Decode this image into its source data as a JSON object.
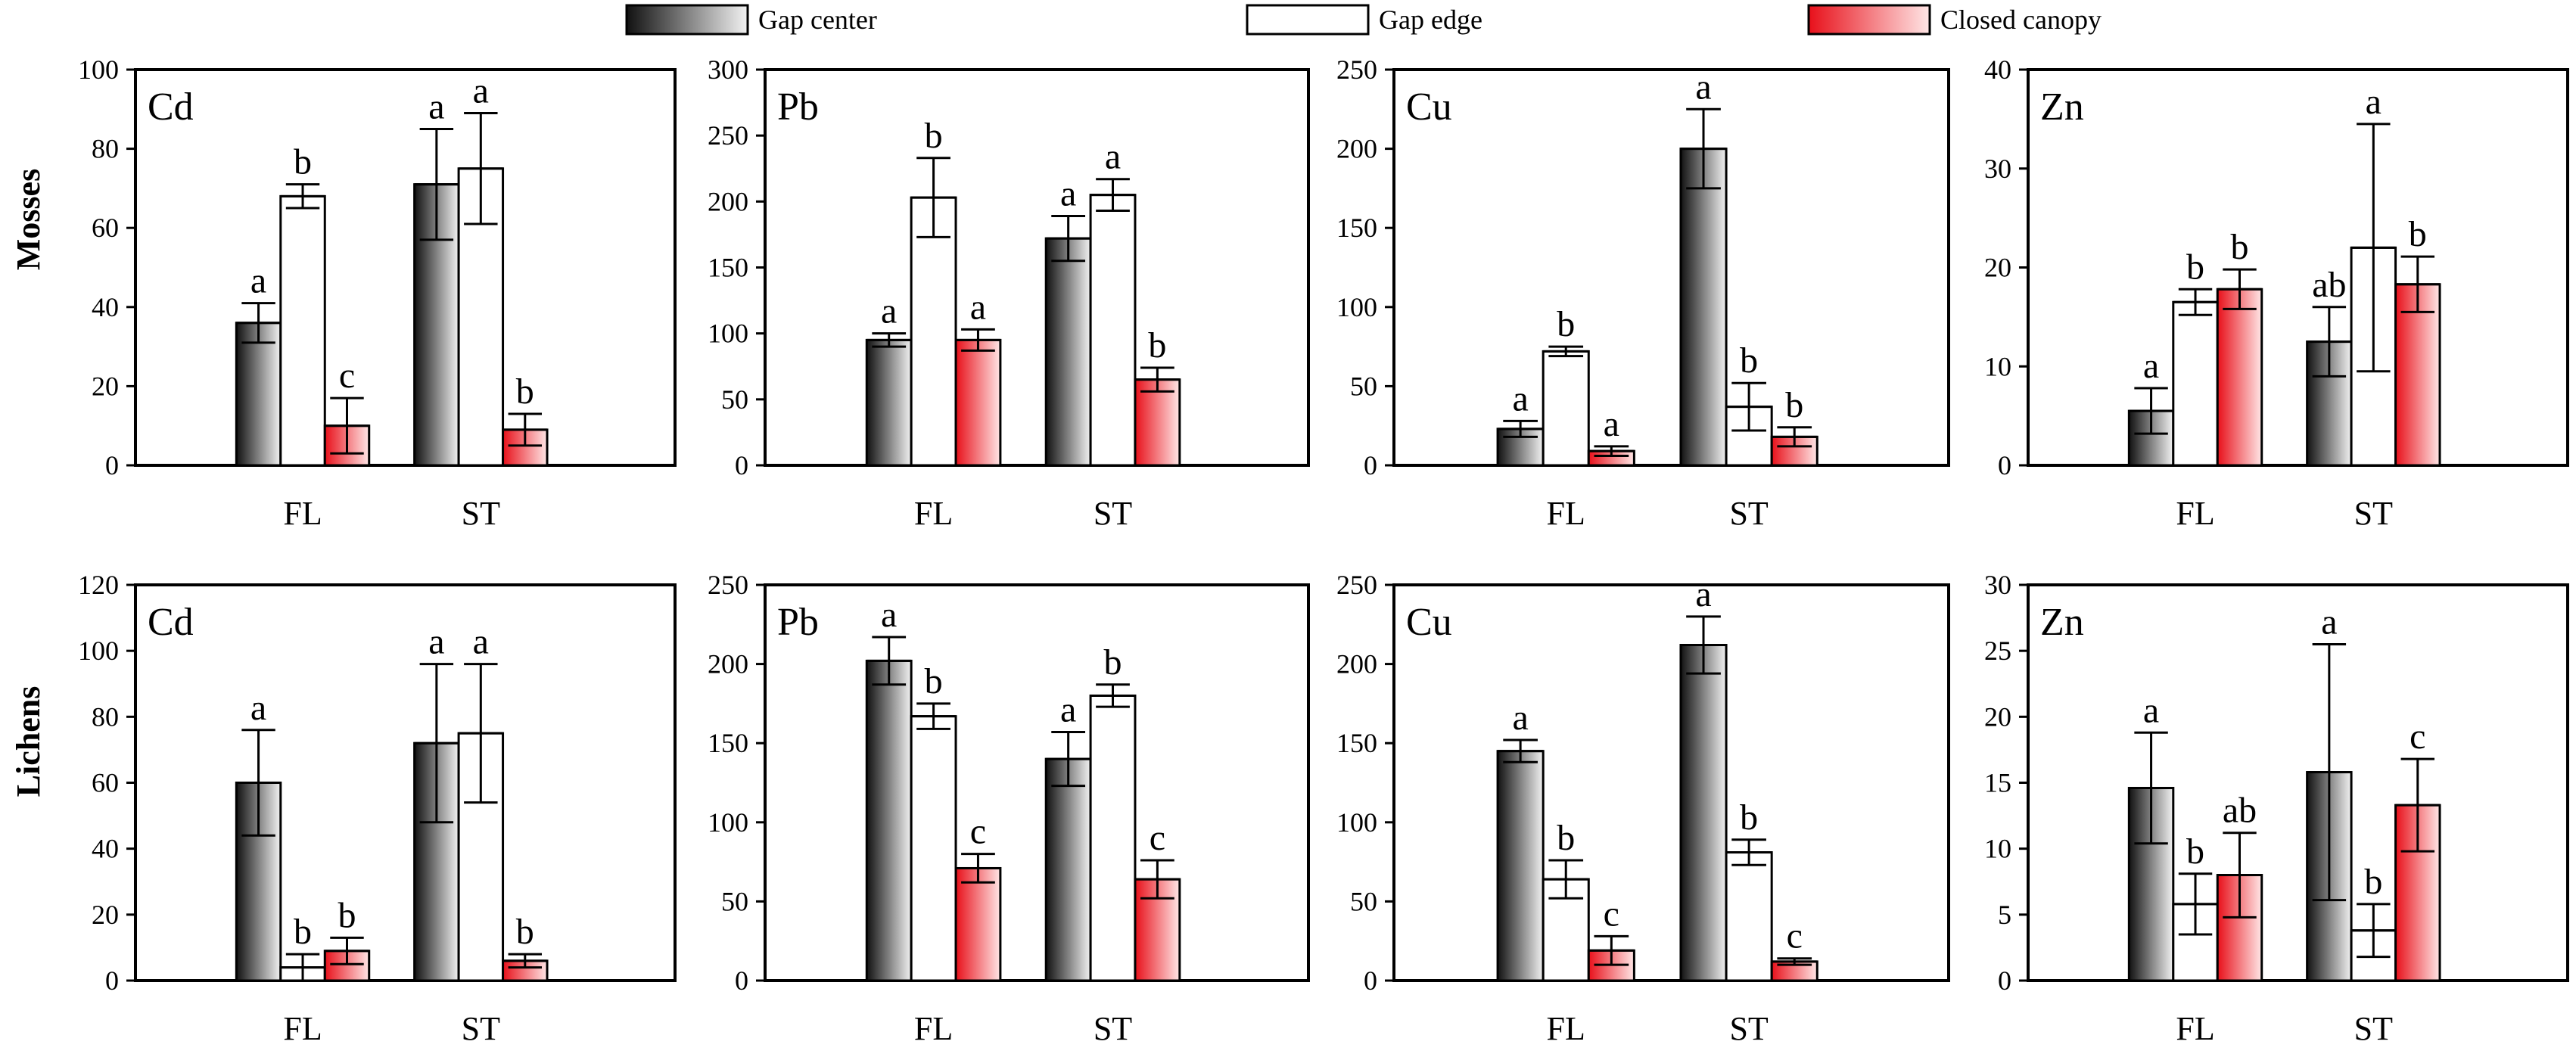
{
  "legend": {
    "items": [
      {
        "label": "Gap center",
        "key": "center"
      },
      {
        "label": "Gap edge",
        "key": "edge"
      },
      {
        "label": "Closed canopy",
        "key": "closed"
      }
    ]
  },
  "colors": {
    "center_dark": "#111111",
    "center_light": "#f2f2f2",
    "edge": "#ffffff",
    "closed_dark": "#e8101a",
    "closed_light": "#ffe6e6",
    "line": "#000000"
  },
  "rows": [
    {
      "label": "Mosses"
    },
    {
      "label": "Lichens"
    }
  ],
  "chart_data": [
    {
      "type": "bar",
      "row": "Mosses",
      "title": "Cd",
      "categories": [
        "FL",
        "ST"
      ],
      "ylim": [
        0,
        100
      ],
      "yticks": [
        0,
        20,
        40,
        60,
        80,
        100
      ],
      "series": [
        {
          "name": "Gap center",
          "values": [
            36,
            71
          ],
          "errors": [
            5,
            14
          ],
          "letters": [
            "a",
            "a"
          ]
        },
        {
          "name": "Gap edge",
          "values": [
            68,
            75
          ],
          "errors": [
            3,
            14
          ],
          "letters": [
            "b",
            "a"
          ]
        },
        {
          "name": "Closed canopy",
          "values": [
            10,
            9
          ],
          "errors": [
            7,
            4
          ],
          "letters": [
            "c",
            "b"
          ]
        }
      ]
    },
    {
      "type": "bar",
      "row": "Mosses",
      "title": "Pb",
      "categories": [
        "FL",
        "ST"
      ],
      "ylim": [
        0,
        300
      ],
      "yticks": [
        0,
        50,
        100,
        150,
        200,
        250,
        300
      ],
      "series": [
        {
          "name": "Gap center",
          "values": [
            95,
            172
          ],
          "errors": [
            5,
            17
          ],
          "letters": [
            "a",
            "a"
          ]
        },
        {
          "name": "Gap edge",
          "values": [
            203,
            205
          ],
          "errors": [
            30,
            12
          ],
          "letters": [
            "b",
            "a"
          ]
        },
        {
          "name": "Closed canopy",
          "values": [
            95,
            65
          ],
          "errors": [
            8,
            9
          ],
          "letters": [
            "a",
            "b"
          ]
        }
      ]
    },
    {
      "type": "bar",
      "row": "Mosses",
      "title": "Cu",
      "categories": [
        "FL",
        "ST"
      ],
      "ylim": [
        0,
        250
      ],
      "yticks": [
        0,
        50,
        100,
        150,
        200,
        250
      ],
      "series": [
        {
          "name": "Gap center",
          "values": [
            23,
            200
          ],
          "errors": [
            5,
            25
          ],
          "letters": [
            "a",
            "a"
          ]
        },
        {
          "name": "Gap edge",
          "values": [
            72,
            37
          ],
          "errors": [
            3,
            15
          ],
          "letters": [
            "b",
            "b"
          ]
        },
        {
          "name": "Closed canopy",
          "values": [
            9,
            18
          ],
          "errors": [
            3,
            6
          ],
          "letters": [
            "a",
            "b"
          ]
        }
      ]
    },
    {
      "type": "bar",
      "row": "Mosses",
      "title": "Zn",
      "categories": [
        "FL",
        "ST"
      ],
      "ylim": [
        0,
        40
      ],
      "yticks": [
        0,
        10,
        20,
        30,
        40
      ],
      "series": [
        {
          "name": "Gap center",
          "values": [
            5.5,
            12.5
          ],
          "errors": [
            2.3,
            3.5
          ],
          "letters": [
            "a",
            "ab"
          ]
        },
        {
          "name": "Gap edge",
          "values": [
            16.5,
            22
          ],
          "errors": [
            1.3,
            12.5
          ],
          "letters": [
            "b",
            "a"
          ]
        },
        {
          "name": "Closed canopy",
          "values": [
            17.8,
            18.3
          ],
          "errors": [
            2,
            2.8
          ],
          "letters": [
            "b",
            "b"
          ]
        }
      ]
    },
    {
      "type": "bar",
      "row": "Lichens",
      "title": "Cd",
      "categories": [
        "FL",
        "ST"
      ],
      "ylim": [
        0,
        120
      ],
      "yticks": [
        0,
        20,
        40,
        60,
        80,
        100,
        120
      ],
      "series": [
        {
          "name": "Gap center",
          "values": [
            60,
            72
          ],
          "errors": [
            16,
            24
          ],
          "letters": [
            "a",
            "a"
          ]
        },
        {
          "name": "Gap edge",
          "values": [
            4,
            75
          ],
          "errors": [
            4,
            21
          ],
          "letters": [
            "b",
            "a"
          ]
        },
        {
          "name": "Closed canopy",
          "values": [
            9,
            6
          ],
          "errors": [
            4,
            2
          ],
          "letters": [
            "b",
            "b"
          ]
        }
      ]
    },
    {
      "type": "bar",
      "row": "Lichens",
      "title": "Pb",
      "categories": [
        "FL",
        "ST"
      ],
      "ylim": [
        0,
        250
      ],
      "yticks": [
        0,
        50,
        100,
        150,
        200,
        250
      ],
      "series": [
        {
          "name": "Gap center",
          "values": [
            202,
            140
          ],
          "errors": [
            15,
            17
          ],
          "letters": [
            "a",
            "a"
          ]
        },
        {
          "name": "Gap edge",
          "values": [
            167,
            180
          ],
          "errors": [
            8,
            7
          ],
          "letters": [
            "b",
            "b"
          ]
        },
        {
          "name": "Closed canopy",
          "values": [
            71,
            64
          ],
          "errors": [
            9,
            12
          ],
          "letters": [
            "c",
            "c"
          ]
        }
      ]
    },
    {
      "type": "bar",
      "row": "Lichens",
      "title": "Cu",
      "categories": [
        "FL",
        "ST"
      ],
      "ylim": [
        0,
        250
      ],
      "yticks": [
        0,
        50,
        100,
        150,
        200,
        250
      ],
      "series": [
        {
          "name": "Gap center",
          "values": [
            145,
            212
          ],
          "errors": [
            7,
            18
          ],
          "letters": [
            "a",
            "a"
          ]
        },
        {
          "name": "Gap edge",
          "values": [
            64,
            81
          ],
          "errors": [
            12,
            8
          ],
          "letters": [
            "b",
            "b"
          ]
        },
        {
          "name": "Closed canopy",
          "values": [
            19,
            12
          ],
          "errors": [
            9,
            2
          ],
          "letters": [
            "c",
            "c"
          ]
        }
      ]
    },
    {
      "type": "bar",
      "row": "Lichens",
      "title": "Zn",
      "categories": [
        "FL",
        "ST"
      ],
      "ylim": [
        0,
        30
      ],
      "yticks": [
        0,
        5,
        10,
        15,
        20,
        25,
        30
      ],
      "series": [
        {
          "name": "Gap center",
          "values": [
            14.6,
            15.8
          ],
          "errors": [
            4.2,
            9.7
          ],
          "letters": [
            "a",
            "a"
          ]
        },
        {
          "name": "Gap edge",
          "values": [
            5.8,
            3.8
          ],
          "errors": [
            2.3,
            2
          ],
          "letters": [
            "b",
            "b"
          ]
        },
        {
          "name": "Closed canopy",
          "values": [
            8,
            13.3
          ],
          "errors": [
            3.2,
            3.5
          ],
          "letters": [
            "ab",
            "c"
          ]
        }
      ]
    }
  ]
}
